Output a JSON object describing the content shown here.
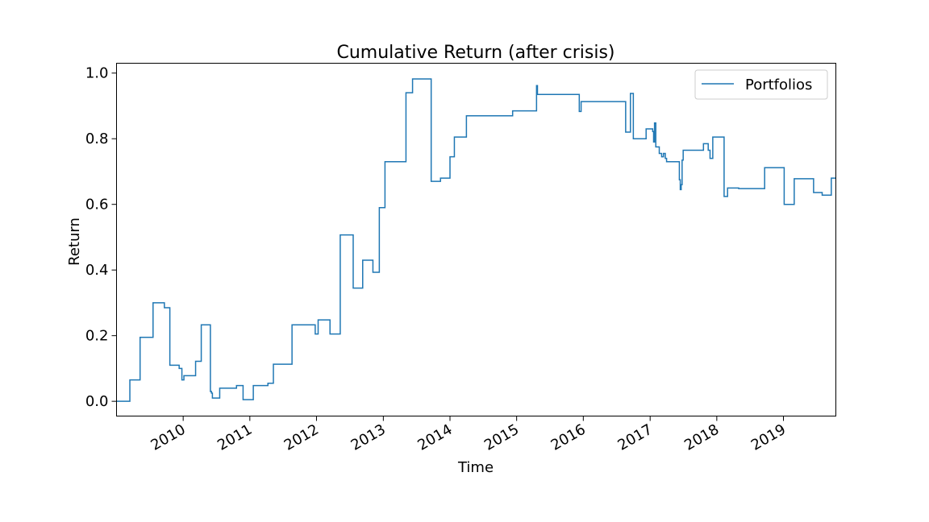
{
  "chart_data": {
    "type": "line",
    "title": "Cumulative Return (after crisis)",
    "xlabel": "Time",
    "ylabel": "Return",
    "xlim": [
      "2009-01-01",
      "2019-10-15"
    ],
    "ylim": [
      -0.045,
      1.03
    ],
    "yticks": [
      0.0,
      0.2,
      0.4,
      0.6,
      0.8,
      1.0
    ],
    "ytick_labels": [
      "0.0",
      "0.2",
      "0.4",
      "0.6",
      "0.8",
      "1.0"
    ],
    "xticks": [
      "2010-01-01",
      "2011-01-01",
      "2012-01-01",
      "2013-01-01",
      "2014-01-01",
      "2015-01-01",
      "2016-01-01",
      "2017-01-01",
      "2018-01-01",
      "2019-01-01"
    ],
    "xtick_labels": [
      "2010",
      "2011",
      "2012",
      "2013",
      "2014",
      "2015",
      "2016",
      "2017",
      "2018",
      "2019"
    ],
    "grid": false,
    "legend_position": "top-right",
    "series": [
      {
        "name": "Portfolios",
        "color": "#1f77b4",
        "step": "post",
        "x": [
          "2009-01-01",
          "2009-03-15",
          "2009-05-10",
          "2009-07-20",
          "2009-09-20",
          "2009-10-20",
          "2009-12-10",
          "2009-12-25",
          "2010-01-05",
          "2010-03-10",
          "2010-04-10",
          "2010-05-30",
          "2010-06-05",
          "2010-06-10",
          "2010-07-20",
          "2010-10-20",
          "2010-11-25",
          "2011-01-20",
          "2011-04-10",
          "2011-05-10",
          "2011-08-20",
          "2011-12-25",
          "2012-01-10",
          "2012-03-15",
          "2012-05-10",
          "2012-07-20",
          "2012-09-10",
          "2012-11-05",
          "2012-12-10",
          "2013-01-10",
          "2013-01-25",
          "2013-05-05",
          "2013-06-10",
          "2013-09-20",
          "2013-10-10",
          "2013-11-10",
          "2014-01-01",
          "2014-01-25",
          "2014-04-01",
          "2014-06-15",
          "2014-08-20",
          "2014-10-01",
          "2014-12-10",
          "2015-04-01",
          "2015-04-20",
          "2015-04-25",
          "2015-05-15",
          "2015-09-01",
          "2015-12-10",
          "2015-12-20",
          "2016-03-01",
          "2016-07-01",
          "2016-08-20",
          "2016-09-15",
          "2016-10-01",
          "2016-10-15",
          "2016-11-10",
          "2016-12-10",
          "2017-01-15",
          "2017-01-20",
          "2017-01-25",
          "2017-02-01",
          "2017-02-20",
          "2017-03-05",
          "2017-03-15",
          "2017-03-25",
          "2017-04-01",
          "2017-04-10",
          "2017-04-20",
          "2017-04-25",
          "2017-05-10",
          "2017-06-10",
          "2017-06-15",
          "2017-06-20",
          "2017-06-25",
          "2017-07-01",
          "2017-07-05",
          "2017-07-15",
          "2017-09-01",
          "2017-10-20",
          "2017-11-15",
          "2017-11-25",
          "2017-12-10",
          "2018-02-10",
          "2018-03-01",
          "2018-04-01",
          "2018-05-01",
          "2018-06-01",
          "2018-07-20",
          "2018-09-20",
          "2018-11-25",
          "2019-01-05",
          "2019-01-20",
          "2019-03-01",
          "2019-04-20",
          "2019-06-15",
          "2019-06-25",
          "2019-08-01",
          "2019-08-25",
          "2019-09-20",
          "2019-10-15"
        ],
        "y": [
          0.0,
          0.065,
          0.195,
          0.3,
          0.285,
          0.11,
          0.1,
          0.065,
          0.078,
          0.122,
          0.233,
          0.03,
          0.025,
          0.01,
          0.04,
          0.048,
          0.005,
          0.048,
          0.055,
          0.113,
          0.233,
          0.205,
          0.248,
          0.205,
          0.507,
          0.345,
          0.43,
          0.393,
          0.59,
          0.73,
          0.73,
          0.94,
          0.982,
          0.67,
          0.67,
          0.68,
          0.745,
          0.805,
          0.87,
          0.87,
          0.87,
          0.87,
          0.885,
          0.885,
          0.962,
          0.935,
          0.935,
          0.935,
          0.883,
          0.913,
          0.913,
          0.913,
          0.82,
          0.938,
          0.8,
          0.8,
          0.8,
          0.83,
          0.822,
          0.79,
          0.848,
          0.775,
          0.755,
          0.745,
          0.755,
          0.74,
          0.73,
          0.73,
          0.73,
          0.73,
          0.73,
          0.675,
          0.645,
          0.66,
          0.735,
          0.765,
          0.765,
          0.765,
          0.765,
          0.785,
          0.765,
          0.74,
          0.805,
          0.624,
          0.65,
          0.65,
          0.648,
          0.648,
          0.648,
          0.712,
          0.712,
          0.6,
          0.6,
          0.678,
          0.678,
          0.636,
          0.636,
          0.628,
          0.628,
          0.68,
          0.68
        ]
      }
    ]
  }
}
